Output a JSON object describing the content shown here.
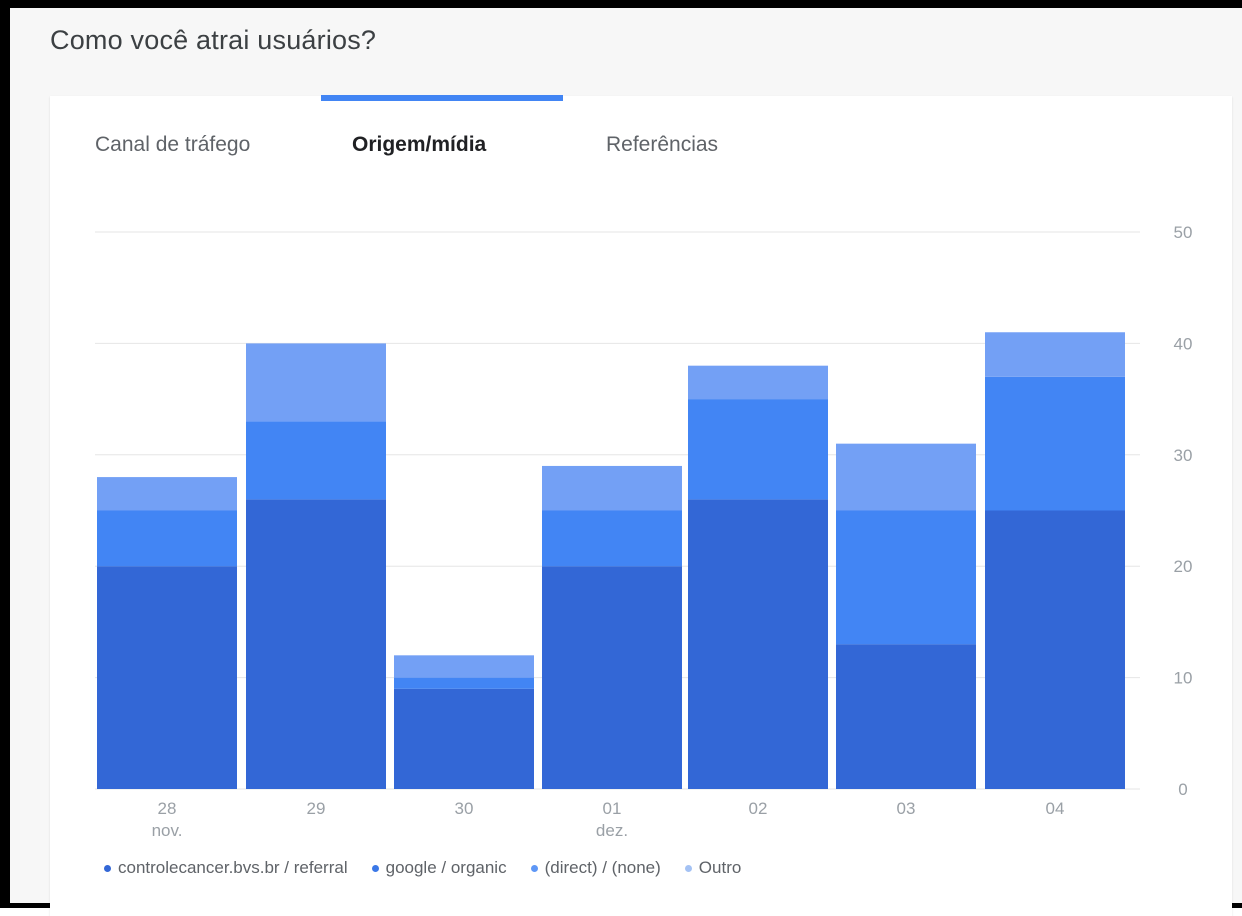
{
  "page": {
    "title": "Como você atrai usuários?"
  },
  "tabs": [
    {
      "label": "Canal de tráfego",
      "active": false
    },
    {
      "label": "Origem/mídia",
      "active": true
    },
    {
      "label": "Referências",
      "active": false
    }
  ],
  "colors": {
    "accent": "#4285f4",
    "series": [
      "#3367d6",
      "#4285f4",
      "#4285f4",
      "#6fa0f5"
    ],
    "grid": "#e6e6e6",
    "axis_text": "#9aa0a6"
  },
  "chart_data": {
    "type": "bar",
    "stacked": true,
    "categories": [
      "28",
      "29",
      "30",
      "01",
      "02",
      "03",
      "04"
    ],
    "category_sublabels": [
      "nov.",
      "",
      "",
      "dez.",
      "",
      "",
      ""
    ],
    "series": [
      {
        "name": "controlecancer.bvs.br / referral",
        "values": [
          20,
          26,
          9,
          20,
          26,
          13,
          25
        ]
      },
      {
        "name": "google / organic",
        "values": [
          0,
          0,
          0,
          0,
          0,
          0,
          0
        ]
      },
      {
        "name": "(direct) / (none)",
        "values": [
          5,
          7,
          1,
          5,
          9,
          12,
          12
        ]
      },
      {
        "name": "Outro",
        "values": [
          3,
          7,
          2,
          4,
          3,
          6,
          4
        ]
      }
    ],
    "yticks": [
      0,
      10,
      20,
      30,
      40,
      50
    ],
    "ylim": [
      0,
      50
    ],
    "y_axis_side": "right",
    "grid": true,
    "legend_position": "bottom"
  }
}
